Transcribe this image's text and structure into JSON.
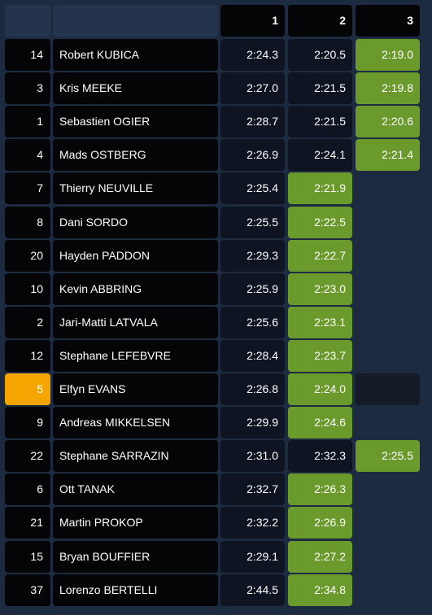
{
  "table": {
    "columns": [
      "1",
      "2",
      "3"
    ],
    "rows": [
      {
        "num": "14",
        "name": "Robert KUBICA",
        "times": [
          "2:24.3",
          "2:20.5",
          "2:19.0"
        ]
      },
      {
        "num": "3",
        "name": "Kris MEEKE",
        "times": [
          "2:27.0",
          "2:21.5",
          "2:19.8"
        ]
      },
      {
        "num": "1",
        "name": "Sebastien OGIER",
        "times": [
          "2:28.7",
          "2:21.5",
          "2:20.6"
        ]
      },
      {
        "num": "4",
        "name": "Mads OSTBERG",
        "times": [
          "2:26.9",
          "2:24.1",
          "2:21.4"
        ]
      },
      {
        "num": "7",
        "name": "Thierry NEUVILLE",
        "times": [
          "2:25.4",
          "2:21.9"
        ]
      },
      {
        "num": "8",
        "name": "Dani SORDO",
        "times": [
          "2:25.5",
          "2:22.5"
        ]
      },
      {
        "num": "20",
        "name": "Hayden PADDON",
        "times": [
          "2:29.3",
          "2:22.7"
        ]
      },
      {
        "num": "10",
        "name": "Kevin ABBRING",
        "times": [
          "2:25.9",
          "2:23.0"
        ]
      },
      {
        "num": "2",
        "name": "Jari-Matti LATVALA",
        "times": [
          "2:25.6",
          "2:23.1"
        ]
      },
      {
        "num": "12",
        "name": "Stephane LEFEBVRE",
        "times": [
          "2:28.4",
          "2:23.7"
        ]
      },
      {
        "num": "5",
        "name": "Elfyn EVANS",
        "times": [
          "2:26.8",
          "2:24.0",
          null
        ],
        "selected": true
      },
      {
        "num": "9",
        "name": "Andreas MIKKELSEN",
        "times": [
          "2:29.9",
          "2:24.6"
        ]
      },
      {
        "num": "22",
        "name": "Stephane SARRAZIN",
        "times": [
          "2:31.0",
          "2:32.3",
          "2:25.5"
        ]
      },
      {
        "num": "6",
        "name": "Ott TANAK",
        "times": [
          "2:32.7",
          "2:26.3"
        ]
      },
      {
        "num": "21",
        "name": "Martin PROKOP",
        "times": [
          "2:32.2",
          "2:26.9"
        ]
      },
      {
        "num": "15",
        "name": "Bryan BOUFFIER",
        "times": [
          "2:29.1",
          "2:27.2"
        ]
      },
      {
        "num": "37",
        "name": "Lorenzo BERTELLI",
        "times": [
          "2:44.5",
          "2:34.8"
        ]
      }
    ]
  }
}
